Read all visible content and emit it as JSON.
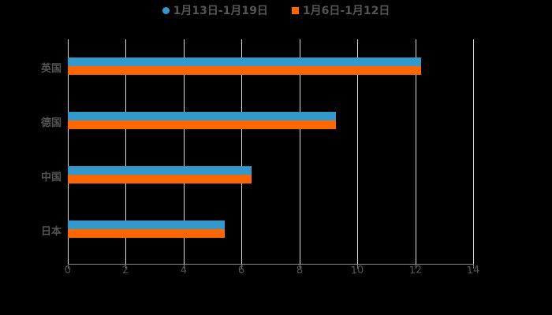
{
  "chart_data": {
    "type": "bar",
    "orientation": "horizontal",
    "title": "",
    "xlabel": "",
    "ylabel": "",
    "categories": [
      "英国",
      "德国",
      "中国",
      "日本"
    ],
    "series": [
      {
        "name": "1月13日-1月19日",
        "color": "#3399cc",
        "values": [
          12.2,
          9.26,
          6.35,
          5.42
        ]
      },
      {
        "name": "1月6日-1月12日",
        "color": "#ff6600",
        "values": [
          12.2,
          9.26,
          6.35,
          5.42
        ]
      }
    ],
    "xlim": [
      0,
      14
    ],
    "xticks": [
      "0",
      "2",
      "4",
      "6",
      "8",
      "10",
      "12",
      "14"
    ],
    "grid": true,
    "legend_position": "top"
  },
  "legend": {
    "item0": "1月13日-1月19日",
    "item1": "1月6日-1月12日"
  }
}
